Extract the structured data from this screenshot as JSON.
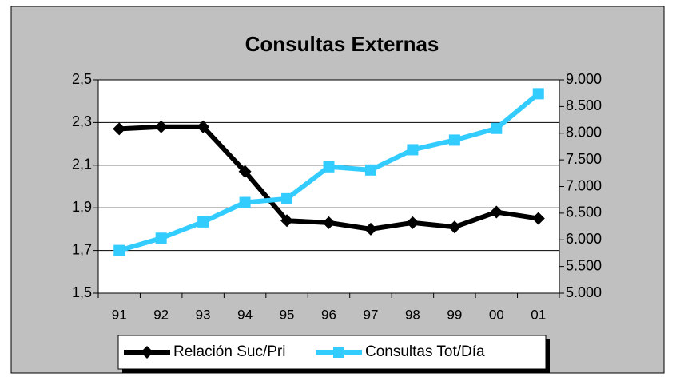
{
  "chart_data": {
    "type": "line",
    "title": "Consultas Externas",
    "categories": [
      "91",
      "92",
      "93",
      "94",
      "95",
      "96",
      "97",
      "98",
      "99",
      "00",
      "01"
    ],
    "series": [
      {
        "name": "Relación Suc/Pri",
        "color": "#000000",
        "marker": "diamond",
        "axis": "y",
        "values": [
          2.27,
          2.28,
          2.28,
          2.07,
          1.84,
          1.83,
          1.8,
          1.83,
          1.81,
          1.88,
          1.85
        ]
      },
      {
        "name": "Consultas Tot/Día",
        "color": "#33ccff",
        "marker": "square",
        "axis": "y2",
        "values": [
          5800,
          6030,
          6335,
          6700,
          6770,
          7370,
          7310,
          7690,
          7870,
          8090,
          8740
        ]
      }
    ],
    "ylim": [
      1.5,
      2.5
    ],
    "yticks": [
      {
        "value": 1.5,
        "label": "1,5"
      },
      {
        "value": 1.7,
        "label": "1,7"
      },
      {
        "value": 1.9,
        "label": "1,9"
      },
      {
        "value": 2.1,
        "label": "2,1"
      },
      {
        "value": 2.3,
        "label": "2,3"
      },
      {
        "value": 2.5,
        "label": "2,5"
      }
    ],
    "y2lim": [
      5000,
      9000
    ],
    "y2ticks": [
      {
        "value": 5000,
        "label": "5.000"
      },
      {
        "value": 5500,
        "label": "5.500"
      },
      {
        "value": 6000,
        "label": "6.000"
      },
      {
        "value": 6500,
        "label": "6.500"
      },
      {
        "value": 7000,
        "label": "7.000"
      },
      {
        "value": 7500,
        "label": "7.500"
      },
      {
        "value": 8000,
        "label": "8.000"
      },
      {
        "value": 8500,
        "label": "8.500"
      },
      {
        "value": 9000,
        "label": "9.000"
      }
    ],
    "grid": true,
    "legend": "bottom"
  }
}
